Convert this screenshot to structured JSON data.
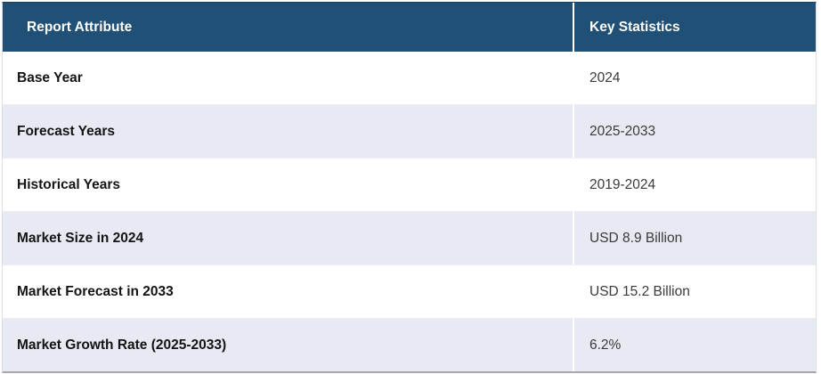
{
  "table": {
    "header": {
      "attribute_label": "Report Attribute",
      "statistics_label": "Key Statistics"
    },
    "rows": [
      {
        "attribute": "Base Year",
        "value": "2024"
      },
      {
        "attribute": "Forecast Years",
        "value": "2025-2033"
      },
      {
        "attribute": "Historical Years",
        "value": "2019-2024"
      },
      {
        "attribute": "Market Size in 2024",
        "value": "USD 8.9 Billion"
      },
      {
        "attribute": "Market Forecast in 2033",
        "value": "USD 15.2 Billion"
      },
      {
        "attribute": "Market Growth Rate (2025-2033)",
        "value": "6.2%"
      }
    ],
    "colors": {
      "header_bg": "#205076",
      "header_text": "#ffffff",
      "row_bg": "#ffffff",
      "row_alt_bg": "#e8eaf3",
      "attribute_text": "#141414",
      "value_text": "#3a3a3a",
      "bottom_border": "#a8a8ac"
    }
  }
}
